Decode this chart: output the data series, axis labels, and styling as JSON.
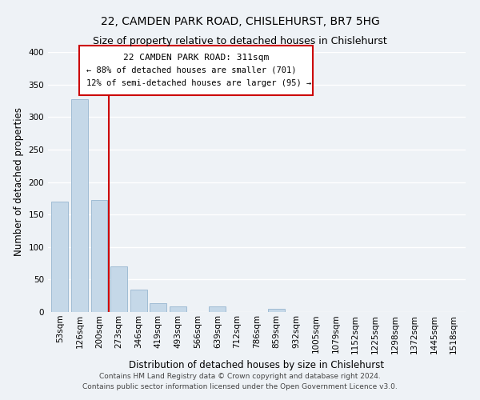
{
  "title": "22, CAMDEN PARK ROAD, CHISLEHURST, BR7 5HG",
  "subtitle": "Size of property relative to detached houses in Chislehurst",
  "xlabel": "Distribution of detached houses by size in Chislehurst",
  "ylabel": "Number of detached properties",
  "bar_labels": [
    "53sqm",
    "126sqm",
    "200sqm",
    "273sqm",
    "346sqm",
    "419sqm",
    "493sqm",
    "566sqm",
    "639sqm",
    "712sqm",
    "786sqm",
    "859sqm",
    "932sqm",
    "1005sqm",
    "1079sqm",
    "1152sqm",
    "1225sqm",
    "1298sqm",
    "1372sqm",
    "1445sqm",
    "1518sqm"
  ],
  "bar_values": [
    170,
    328,
    172,
    70,
    34,
    13,
    9,
    0,
    9,
    0,
    0,
    5,
    0,
    0,
    0,
    0,
    0,
    0,
    0,
    0,
    0
  ],
  "bar_color": "#c5d8e8",
  "bar_edge_color": "#a0bcd4",
  "property_line_color": "#cc0000",
  "property_line_bar_index": 2.5,
  "ylim": [
    0,
    400
  ],
  "yticks": [
    0,
    50,
    100,
    150,
    200,
    250,
    300,
    350,
    400
  ],
  "annotation_title": "22 CAMDEN PARK ROAD: 311sqm",
  "annotation_line1": "← 88% of detached houses are smaller (701)",
  "annotation_line2": "12% of semi-detached houses are larger (95) →",
  "annotation_box_color": "#ffffff",
  "annotation_box_edge": "#cc0000",
  "footer_line1": "Contains HM Land Registry data © Crown copyright and database right 2024.",
  "footer_line2": "Contains public sector information licensed under the Open Government Licence v3.0.",
  "background_color": "#eef2f6",
  "grid_color": "#ffffff",
  "title_fontsize": 10,
  "subtitle_fontsize": 9,
  "axis_label_fontsize": 8.5,
  "tick_fontsize": 7.5,
  "footer_fontsize": 6.5
}
